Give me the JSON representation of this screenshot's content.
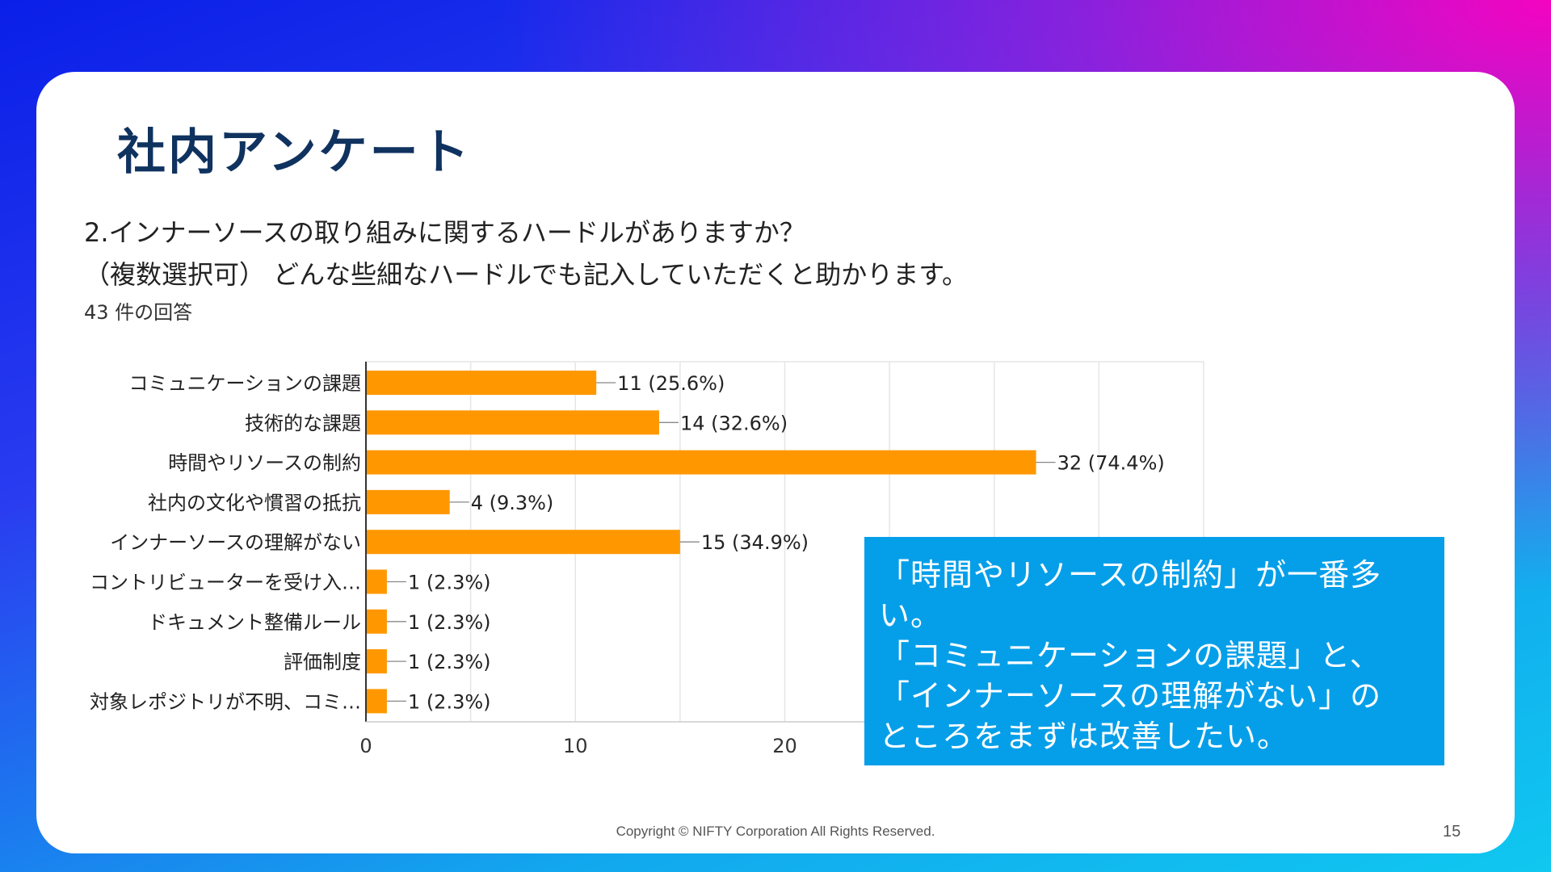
{
  "slide": {
    "title": "社内アンケート",
    "question_line1": "2.インナーソースの取り組みに関するハードルがありますか？",
    "question_line2": "（複数選択可） どんな些細なハードルでも記入していただくと助かります。",
    "responses": "43 件の回答",
    "callout_lines": [
      "「時間やリソースの制約」が一番多",
      "い。",
      "「コミュニケーションの課題」と、",
      "「インナーソースの理解がない」の",
      "ところをまずは改善したい。"
    ],
    "copyright": "Copyright © NIFTY Corporation All Rights Reserved.",
    "page_number": "15"
  },
  "colors": {
    "bar": "#ff9800",
    "title": "#10325f",
    "callout_bg": "#059fe9"
  },
  "chart_data": {
    "type": "bar",
    "orientation": "horizontal",
    "categories": [
      "コミュニケーションの課題",
      "技術的な課題",
      "時間やリソースの制約",
      "社内の文化や慣習の抵抗",
      "インナーソースの理解がない",
      "コントリビューターを受け入…",
      "ドキュメント整備ルール",
      "評価制度",
      "対象レポジトリが不明、コミ…"
    ],
    "values": [
      11,
      14,
      32,
      4,
      15,
      1,
      1,
      1,
      1
    ],
    "data_labels": [
      "11 (25.6%)",
      "14 (32.6%)",
      "32 (74.4%)",
      "4 (9.3%)",
      "15 (34.9%)",
      "1 (2.3%)",
      "1 (2.3%)",
      "1 (2.3%)",
      "1 (2.3%)"
    ],
    "x_ticks": [
      "0",
      "10",
      "20"
    ],
    "xlim": [
      0,
      40
    ],
    "grid": true,
    "title": "",
    "xlabel": "",
    "ylabel": ""
  }
}
